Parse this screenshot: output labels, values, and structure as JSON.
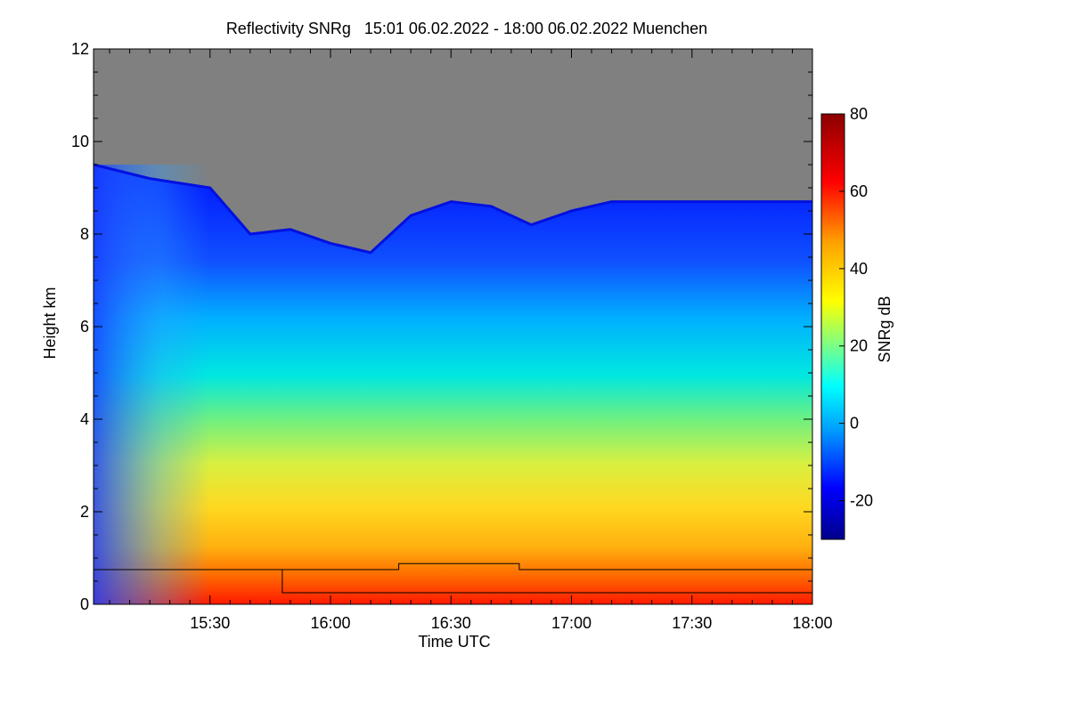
{
  "chart_data": {
    "type": "heatmap",
    "title": "Reflectivity SNRg   15:01 06.02.2022 - 18:00 06.02.2022 Muenchen",
    "xlabel": "Time UTC",
    "ylabel": "Height km",
    "x_range": [
      "15:01",
      "18:00"
    ],
    "x_ticks": [
      "15:30",
      "16:00",
      "16:30",
      "17:00",
      "17:30",
      "18:00"
    ],
    "ylim": [
      0,
      12
    ],
    "y_ticks": [
      "0",
      "2",
      "4",
      "6",
      "8",
      "10",
      "12"
    ],
    "colorbar": {
      "label": "SNRg dB",
      "range": [
        -30,
        80
      ],
      "ticks": [
        "-20",
        "0",
        "20",
        "40",
        "60",
        "80"
      ],
      "colors": [
        "#00008c",
        "#0000ff",
        "#00a0ff",
        "#00ffff",
        "#80ff80",
        "#ffff00",
        "#ffa000",
        "#ff0000",
        "#8c0000"
      ]
    },
    "no_signal_color": "#808080",
    "echo_top_km": [
      {
        "time": "15:01",
        "height": 9.5
      },
      {
        "time": "15:15",
        "height": 9.2
      },
      {
        "time": "15:30",
        "height": 9.0
      },
      {
        "time": "15:40",
        "height": 8.0
      },
      {
        "time": "15:50",
        "height": 8.1
      },
      {
        "time": "16:00",
        "height": 7.8
      },
      {
        "time": "16:10",
        "height": 7.6
      },
      {
        "time": "16:20",
        "height": 8.4
      },
      {
        "time": "16:30",
        "height": 8.7
      },
      {
        "time": "16:40",
        "height": 8.6
      },
      {
        "time": "16:50",
        "height": 8.2
      },
      {
        "time": "17:00",
        "height": 8.5
      },
      {
        "time": "17:10",
        "height": 8.7
      },
      {
        "time": "17:20",
        "height": 8.7
      },
      {
        "time": "17:30",
        "height": 8.7
      },
      {
        "time": "17:40",
        "height": 8.7
      },
      {
        "time": "17:50",
        "height": 8.7
      },
      {
        "time": "18:00",
        "height": 8.7
      }
    ],
    "overlay_lines": [
      {
        "name": "",
        "points": [
          {
            "time": "15:01",
            "height": 0.75
          },
          {
            "time": "15:48",
            "height": 0.75
          },
          {
            "time": "15:48",
            "height": 0.25
          },
          {
            "time": "18:00",
            "height": 0.25
          }
        ]
      },
      {
        "name": "",
        "points": [
          {
            "time": "15:01",
            "height": 0.75
          },
          {
            "time": "16:17",
            "height": 0.75
          },
          {
            "time": "16:17",
            "height": 0.88
          },
          {
            "time": "16:47",
            "height": 0.88
          },
          {
            "time": "16:47",
            "height": 0.75
          },
          {
            "time": "18:00",
            "height": 0.75
          }
        ]
      }
    ]
  }
}
